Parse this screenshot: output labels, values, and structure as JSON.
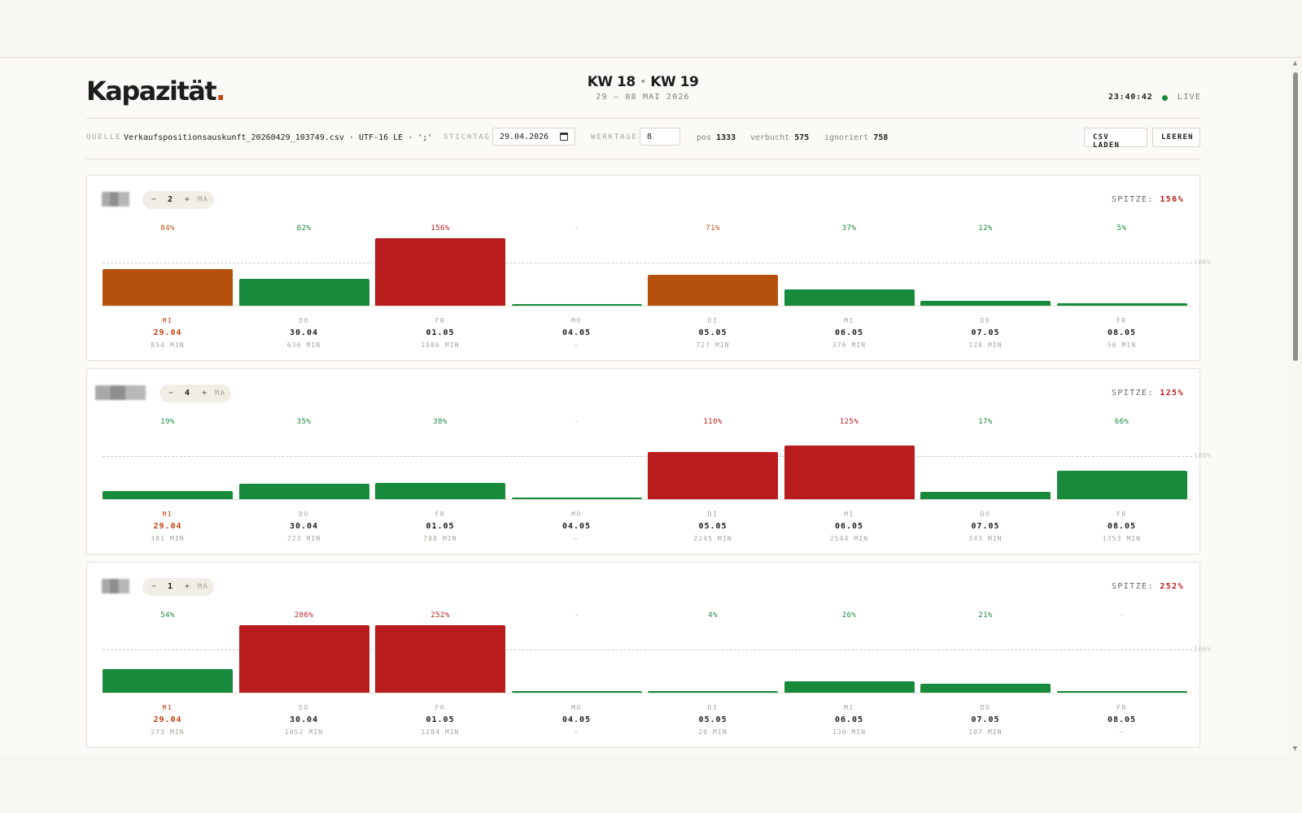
{
  "app": {
    "logo": "Kapazität",
    "logo_dot": ".",
    "kw_from": "KW 18",
    "kw_sep": "•",
    "kw_to": "KW 19",
    "date_range": "29 – 08 MAI 2026",
    "clock": "23:40:42",
    "live": "LIVE"
  },
  "toolbar": {
    "quelle_label": "QUELLE",
    "quelle_value": "Verkaufspositionsauskunft_20260429_103749.csv · UTF-16 LE · ';'",
    "stichtag_label": "STICHTAG",
    "stichtag_value": "29.04.2026",
    "werktage_label": "WERKTAGE",
    "werktage_value": "8",
    "pos_label": "pos",
    "pos_value": "1333",
    "verbucht_label": "verbucht",
    "verbucht_value": "575",
    "ignoriert_label": "ignoriert",
    "ignoriert_value": "758",
    "csv_button": "CSV LADEN",
    "clear_button": "LEEREN"
  },
  "labels": {
    "minus": "−",
    "plus": "+",
    "ma": "MA",
    "peak": "SPITZE:",
    "ref": "100%"
  },
  "colors": {
    "green": "#178a3c",
    "orange": "#b5510c",
    "red": "#b91c1c",
    "today": "#c2410c"
  },
  "days": [
    {
      "name": "MI",
      "date": "29.04",
      "today": true
    },
    {
      "name": "DO",
      "date": "30.04"
    },
    {
      "name": "FR",
      "date": "01.05"
    },
    {
      "name": "MO",
      "date": "04.05"
    },
    {
      "name": "DI",
      "date": "05.05"
    },
    {
      "name": "MI",
      "date": "06.05"
    },
    {
      "name": "DO",
      "date": "07.05"
    },
    {
      "name": "FR",
      "date": "08.05"
    }
  ],
  "cards": [
    {
      "ma": "2",
      "peak": "156%",
      "pct": [
        "84%",
        "62%",
        "156%",
        "-",
        "71%",
        "37%",
        "12%",
        "5%"
      ],
      "values": [
        84,
        62,
        156,
        0,
        71,
        37,
        12,
        5
      ],
      "minutes": [
        "854 MIN",
        "636 MIN",
        "1586 MIN",
        "—",
        "727 MIN",
        "376 MIN",
        "120 MIN",
        "50 MIN"
      ]
    },
    {
      "ma": "4",
      "peak": "125%",
      "pct": [
        "19%",
        "35%",
        "38%",
        "-",
        "110%",
        "125%",
        "17%",
        "66%"
      ],
      "values": [
        19,
        35,
        38,
        0,
        110,
        125,
        17,
        66
      ],
      "minutes": [
        "381 MIN",
        "723 MIN",
        "788 MIN",
        "—",
        "2245 MIN",
        "2544 MIN",
        "343 MIN",
        "1353 MIN"
      ]
    },
    {
      "ma": "1",
      "peak": "252%",
      "pct": [
        "54%",
        "206%",
        "252%",
        "-",
        "4%",
        "26%",
        "21%",
        "-"
      ],
      "values": [
        54,
        206,
        252,
        0,
        4,
        26,
        21,
        0
      ],
      "minutes": [
        "273 MIN",
        "1052 MIN",
        "1284 MIN",
        "—",
        "20 MIN",
        "130 MIN",
        "107 MIN",
        "—"
      ]
    }
  ]
}
